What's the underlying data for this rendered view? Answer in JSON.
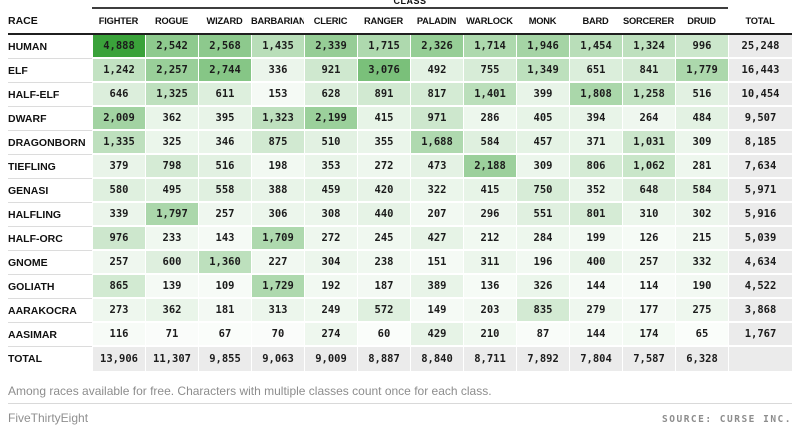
{
  "chart_data": {
    "type": "heatmap",
    "col_group_label": "CLASS",
    "row_header": "RACE",
    "total_label": "TOTAL",
    "columns": [
      "FIGHTER",
      "ROGUE",
      "WIZARD",
      "BARBARIAN",
      "CLERIC",
      "RANGER",
      "PALADIN",
      "WARLOCK",
      "MONK",
      "BARD",
      "SORCERER",
      "DRUID"
    ],
    "rows": [
      {
        "race": "HUMAN",
        "values": [
          4888,
          2542,
          2568,
          1435,
          2339,
          1715,
          2326,
          1714,
          1946,
          1454,
          1324,
          996
        ],
        "total": 25248
      },
      {
        "race": "ELF",
        "values": [
          1242,
          2257,
          2744,
          336,
          921,
          3076,
          492,
          755,
          1349,
          651,
          841,
          1779
        ],
        "total": 16443
      },
      {
        "race": "HALF-ELF",
        "values": [
          646,
          1325,
          611,
          153,
          628,
          891,
          817,
          1401,
          399,
          1808,
          1258,
          516
        ],
        "total": 10454
      },
      {
        "race": "DWARF",
        "values": [
          2009,
          362,
          395,
          1323,
          2199,
          415,
          971,
          286,
          405,
          394,
          264,
          484
        ],
        "total": 9507
      },
      {
        "race": "DRAGONBORN",
        "values": [
          1335,
          325,
          346,
          875,
          510,
          355,
          1688,
          584,
          457,
          371,
          1031,
          309
        ],
        "total": 8185
      },
      {
        "race": "TIEFLING",
        "values": [
          379,
          798,
          516,
          198,
          353,
          272,
          473,
          2188,
          309,
          806,
          1062,
          281
        ],
        "total": 7634
      },
      {
        "race": "GENASI",
        "values": [
          580,
          495,
          558,
          388,
          459,
          420,
          322,
          415,
          750,
          352,
          648,
          584
        ],
        "total": 5971
      },
      {
        "race": "HALFLING",
        "values": [
          339,
          1797,
          257,
          306,
          308,
          440,
          207,
          296,
          551,
          801,
          310,
          302
        ],
        "total": 5916
      },
      {
        "race": "HALF-ORC",
        "values": [
          976,
          233,
          143,
          1709,
          272,
          245,
          427,
          212,
          284,
          199,
          126,
          215
        ],
        "total": 5039
      },
      {
        "race": "GNOME",
        "values": [
          257,
          600,
          1360,
          227,
          304,
          238,
          151,
          311,
          196,
          400,
          257,
          332
        ],
        "total": 4634
      },
      {
        "race": "GOLIATH",
        "values": [
          865,
          139,
          109,
          1729,
          192,
          187,
          389,
          136,
          326,
          144,
          114,
          190
        ],
        "total": 4522
      },
      {
        "race": "AARAKOCRA",
        "values": [
          273,
          362,
          181,
          313,
          249,
          572,
          149,
          203,
          835,
          279,
          177,
          275
        ],
        "total": 3868
      },
      {
        "race": "AASIMAR",
        "values": [
          116,
          71,
          67,
          70,
          274,
          60,
          429,
          210,
          87,
          144,
          174,
          65
        ],
        "total": 1767
      }
    ],
    "column_totals": [
      13906,
      11307,
      9855,
      9063,
      9009,
      8887,
      8840,
      8711,
      7892,
      7804,
      7587,
      6328
    ],
    "max_value": 4888,
    "colors": {
      "heat_max": "#3aa23a",
      "total_bg": "#ebebeb"
    },
    "legend_position": "none",
    "grid": false
  },
  "footnote": "Among races available for free. Characters with multiple classes count once for each class.",
  "credits": {
    "brand": "FiveThirtyEight",
    "source": "SOURCE: CURSE INC."
  }
}
